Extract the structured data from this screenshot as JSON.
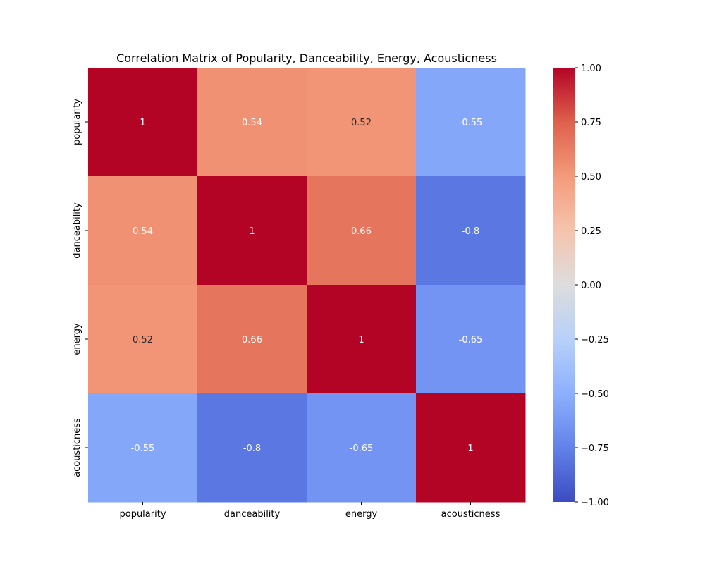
{
  "chart_data": {
    "type": "heatmap",
    "title": "Correlation Matrix of Popularity, Danceability, Energy, Acousticness",
    "row_labels": [
      "popularity",
      "danceability",
      "energy",
      "acousticness"
    ],
    "col_labels": [
      "popularity",
      "danceability",
      "energy",
      "acousticness"
    ],
    "values": [
      [
        1,
        0.54,
        0.52,
        -0.55
      ],
      [
        0.54,
        1,
        0.66,
        -0.8
      ],
      [
        0.52,
        0.66,
        1,
        -0.65
      ],
      [
        -0.55,
        -0.8,
        -0.65,
        1
      ]
    ],
    "cell_labels": [
      [
        "1",
        "0.54",
        "0.52",
        "-0.55"
      ],
      [
        "0.54",
        "1",
        "0.66",
        "-0.8"
      ],
      [
        "0.52",
        "0.66",
        "1",
        "-0.65"
      ],
      [
        "-0.55",
        "-0.8",
        "-0.65",
        "1"
      ]
    ],
    "colormap": "coolwarm",
    "vmin": -1,
    "vmax": 1,
    "colorbar": {
      "ticks": [
        1.0,
        0.75,
        0.5,
        0.25,
        0.0,
        -0.25,
        -0.5,
        -0.75,
        -1.0
      ],
      "tick_labels": [
        "1.00",
        "0.75",
        "0.50",
        "0.25",
        "0.00",
        "−0.25",
        "−0.50",
        "−0.75",
        "−1.00"
      ]
    },
    "grid": false,
    "legend": "colorbar-right"
  }
}
